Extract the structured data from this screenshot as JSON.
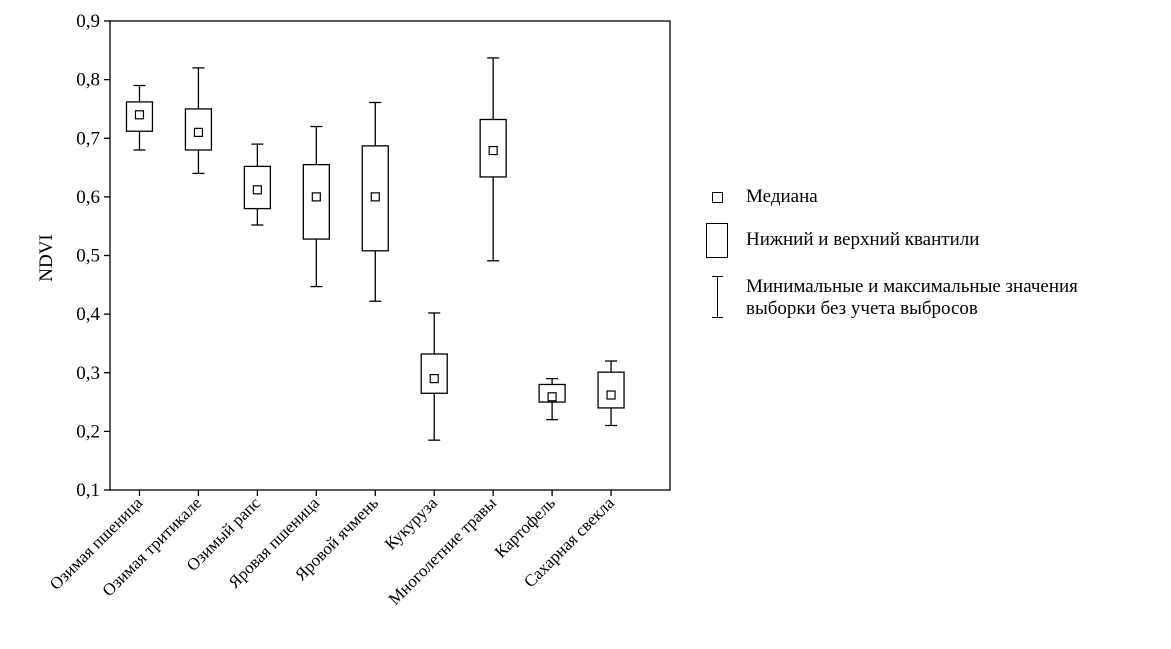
{
  "chart_data": {
    "type": "boxplot",
    "ylabel": "NDVI",
    "ylim": [
      0.1,
      0.9
    ],
    "yticks": [
      "0,1",
      "0,2",
      "0,3",
      "0,4",
      "0,5",
      "0,6",
      "0,7",
      "0,8",
      "0,9"
    ],
    "ytick_values": [
      0.1,
      0.2,
      0.3,
      0.4,
      0.5,
      0.6,
      0.7,
      0.8,
      0.9
    ],
    "categories": [
      "Озимая пшеница",
      "Озимая тритикале",
      "Озимый рапс",
      "Яровая пшеница",
      "Яровой ячмень",
      "Кукуруза",
      "Многолетние травы",
      "Картофель",
      "Сахарная свекла"
    ],
    "boxes": [
      {
        "min": 0.68,
        "q1": 0.712,
        "median": 0.74,
        "q3": 0.762,
        "max": 0.79
      },
      {
        "min": 0.64,
        "q1": 0.68,
        "median": 0.71,
        "q3": 0.75,
        "max": 0.82
      },
      {
        "min": 0.552,
        "q1": 0.58,
        "median": 0.612,
        "q3": 0.652,
        "max": 0.69
      },
      {
        "min": 0.447,
        "q1": 0.528,
        "median": 0.6,
        "q3": 0.655,
        "max": 0.72
      },
      {
        "min": 0.422,
        "q1": 0.508,
        "median": 0.6,
        "q3": 0.687,
        "max": 0.761
      },
      {
        "min": 0.185,
        "q1": 0.265,
        "median": 0.29,
        "q3": 0.332,
        "max": 0.402
      },
      {
        "min": 0.491,
        "q1": 0.634,
        "median": 0.679,
        "q3": 0.732,
        "max": 0.837
      },
      {
        "min": 0.22,
        "q1": 0.25,
        "median": 0.259,
        "q3": 0.28,
        "max": 0.29
      },
      {
        "min": 0.21,
        "q1": 0.24,
        "median": 0.262,
        "q3": 0.301,
        "max": 0.32
      }
    ],
    "grid": false,
    "legend_position": "right"
  },
  "legend": {
    "median": "Медиана",
    "quartiles": "Нижний и верхний квантили",
    "range_line1": "Минимальные и максимальные значения",
    "range_line2": "выборки без учета выбросов"
  }
}
